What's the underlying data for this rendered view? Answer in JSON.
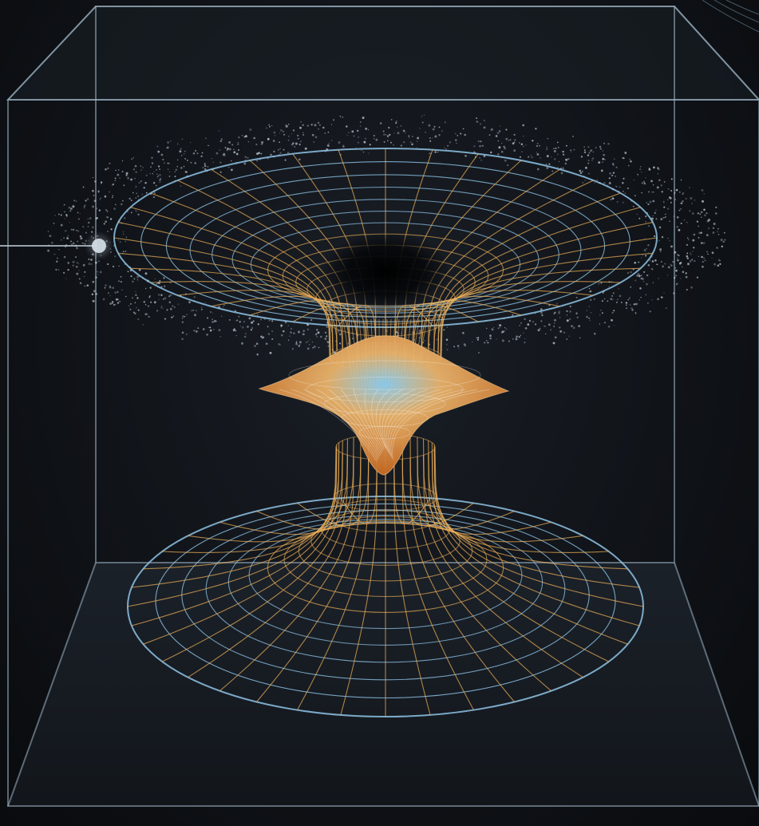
{
  "scene": {
    "subject": "wormhole-funnel-in-glass-cube",
    "palette": {
      "background": "#0c0f13",
      "cube_edge": "#9fb4c4",
      "grid_blue": "#8ec3e6",
      "grid_gold": "#f0b25a",
      "membrane_orange": "#e08a3a",
      "dust": "#c8d6e2"
    }
  }
}
